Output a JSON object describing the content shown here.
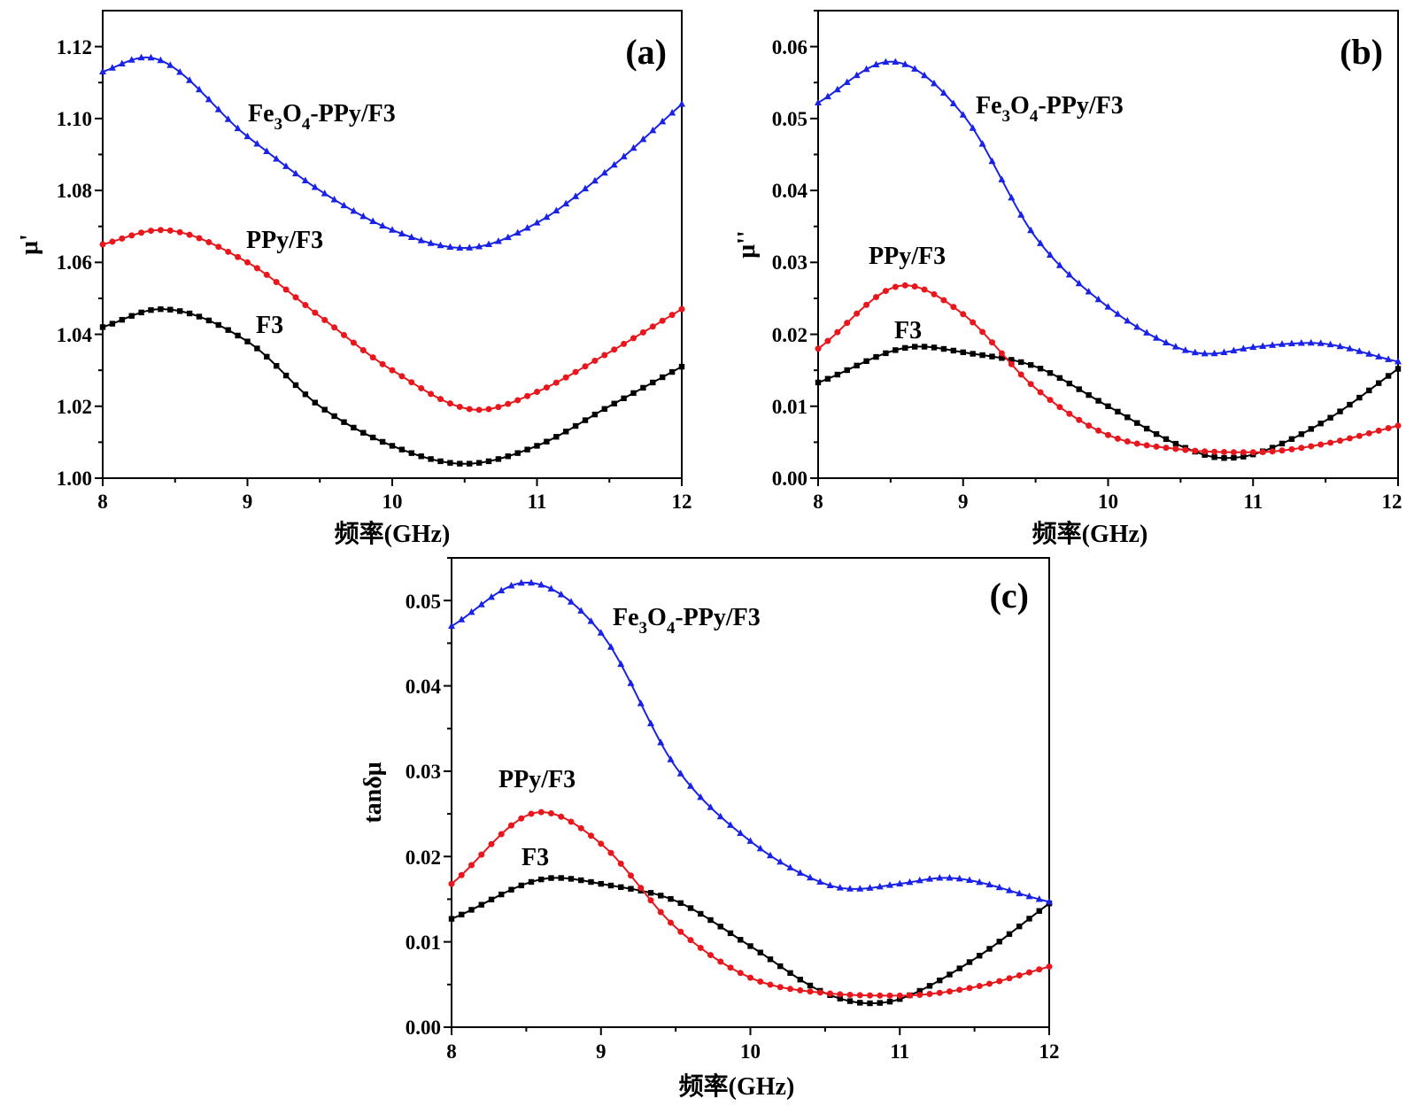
{
  "figure": {
    "colors": {
      "F3": "#000000",
      "PPy/F3": "#e8171d",
      "Fe3O4-PPy/F3": "#1a22e6"
    },
    "markers": {
      "F3": "square",
      "PPy/F3": "circle",
      "Fe3O4-PPy/F3": "triangle"
    }
  },
  "chart_data": [
    {
      "panel": "(a)",
      "type": "line",
      "xlabel": "频率(GHz)",
      "ylabel": "μ'",
      "xlim": [
        8,
        12
      ],
      "ylim": [
        1.0,
        1.13
      ],
      "xticks": [
        "8",
        "9",
        "10",
        "11",
        "12"
      ],
      "yticks": [
        "1.00",
        "1.02",
        "1.04",
        "1.06",
        "1.08",
        "1.10",
        "1.12"
      ],
      "series": [
        {
          "name": "F3",
          "label": "F3",
          "marker": "square",
          "x": [
            8,
            8.4,
            9,
            9.5,
            10,
            10.5,
            11,
            11.5,
            12
          ],
          "y": [
            1.042,
            1.047,
            1.038,
            1.02,
            1.009,
            1.004,
            1.009,
            1.02,
            1.031
          ]
        },
        {
          "name": "PPy/F3",
          "label": "PPy/F3",
          "marker": "circle",
          "x": [
            8,
            8.4,
            9,
            9.5,
            10,
            10.6,
            11,
            11.5,
            12
          ],
          "y": [
            1.065,
            1.069,
            1.06,
            1.045,
            1.03,
            1.019,
            1.024,
            1.035,
            1.047
          ]
        },
        {
          "name": "Fe3O4-PPy/F3",
          "label_main": "Fe",
          "label_sub1": "3",
          "label_mid": "O",
          "label_sub2": "4",
          "label_tail": "-PPy/F3",
          "marker": "triangle",
          "x": [
            8,
            8.3,
            9,
            9.5,
            10,
            10.5,
            11,
            11.5,
            12
          ],
          "y": [
            1.113,
            1.117,
            1.095,
            1.08,
            1.069,
            1.064,
            1.071,
            1.086,
            1.104
          ]
        }
      ]
    },
    {
      "panel": "(b)",
      "type": "line",
      "xlabel": "频率(GHz)",
      "ylabel": "μ''",
      "xlim": [
        8,
        12
      ],
      "ylim": [
        0,
        0.065
      ],
      "xticks": [
        "8",
        "9",
        "10",
        "11",
        "12"
      ],
      "yticks": [
        "0.00",
        "0.01",
        "0.02",
        "0.03",
        "0.04",
        "0.05",
        "0.06"
      ],
      "series": [
        {
          "name": "F3",
          "label": "F3",
          "marker": "square",
          "x": [
            8,
            8.7,
            9,
            9.5,
            10,
            10.5,
            10.8,
            11,
            11.5,
            12
          ],
          "y": [
            0.0133,
            0.0183,
            0.0175,
            0.0155,
            0.01,
            0.0045,
            0.0028,
            0.0033,
            0.008,
            0.0152
          ]
        },
        {
          "name": "PPy/F3",
          "label": "PPy/F3",
          "marker": "circle",
          "x": [
            8,
            8.6,
            9,
            9.5,
            10,
            10.5,
            11,
            11.5,
            12
          ],
          "y": [
            0.018,
            0.0268,
            0.0228,
            0.0125,
            0.006,
            0.004,
            0.0036,
            0.0048,
            0.0073
          ]
        },
        {
          "name": "Fe3O4-PPy/F3",
          "label_main": "Fe",
          "label_sub1": "3",
          "label_mid": "O",
          "label_sub2": "4",
          "label_tail": "-PPy/F3",
          "marker": "triangle",
          "x": [
            8,
            8.5,
            9,
            9.5,
            10,
            10.5,
            10.7,
            11,
            11.4,
            12
          ],
          "y": [
            0.0522,
            0.0579,
            0.0505,
            0.0335,
            0.0238,
            0.018,
            0.0173,
            0.0182,
            0.0188,
            0.0162
          ]
        }
      ]
    },
    {
      "panel": "(c)",
      "type": "line",
      "xlabel": "频率(GHz)",
      "ylabel": "tanδμ",
      "xlim": [
        8,
        12
      ],
      "ylim": [
        0,
        0.055
      ],
      "xticks": [
        "8",
        "9",
        "10",
        "11",
        "12"
      ],
      "yticks": [
        "0.00",
        "0.01",
        "0.02",
        "0.03",
        "0.04",
        "0.05"
      ],
      "series": [
        {
          "name": "F3",
          "label": "F3",
          "marker": "square",
          "x": [
            8,
            8.7,
            9,
            9.5,
            10,
            10.5,
            10.8,
            11,
            11.5,
            12
          ],
          "y": [
            0.0127,
            0.0175,
            0.0168,
            0.0148,
            0.0095,
            0.004,
            0.0028,
            0.0033,
            0.008,
            0.0145
          ]
        },
        {
          "name": "PPy/F3",
          "label": "PPy/F3",
          "marker": "circle",
          "x": [
            8,
            8.6,
            9,
            9.5,
            10,
            10.5,
            11,
            11.5,
            12
          ],
          "y": [
            0.0168,
            0.0252,
            0.0215,
            0.0117,
            0.0058,
            0.004,
            0.0037,
            0.0047,
            0.0071
          ]
        },
        {
          "name": "Fe3O4-PPy/F3",
          "label_main": "Fe",
          "label_sub1": "3",
          "label_mid": "O",
          "label_sub2": "4",
          "label_tail": "-PPy/F3",
          "marker": "triangle",
          "x": [
            8,
            8.5,
            9,
            9.5,
            10,
            10.5,
            10.7,
            11,
            11.3,
            12
          ],
          "y": [
            0.047,
            0.0521,
            0.0462,
            0.0305,
            0.0218,
            0.0168,
            0.0162,
            0.0168,
            0.0175,
            0.0147
          ]
        }
      ]
    }
  ]
}
